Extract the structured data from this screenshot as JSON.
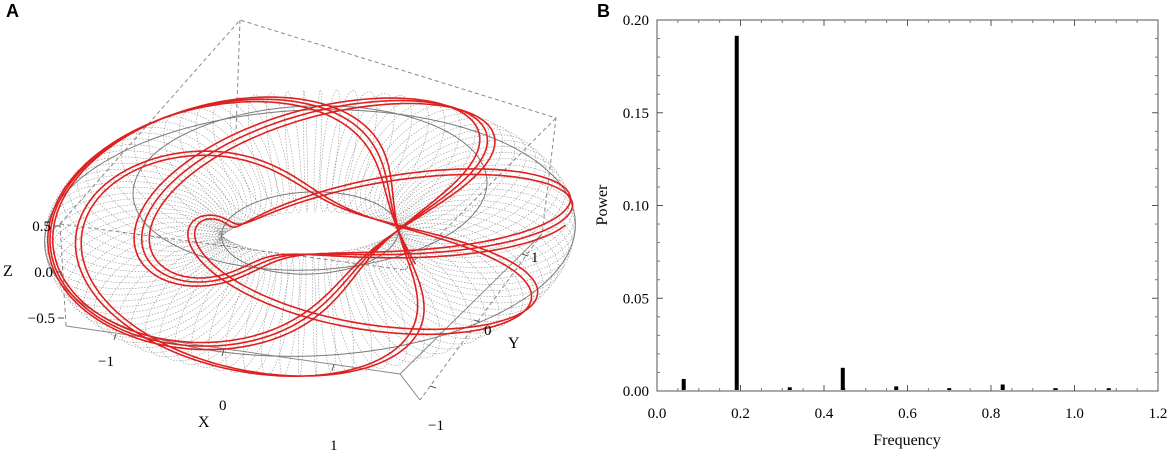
{
  "panels": {
    "a_label": "A",
    "b_label": "B"
  },
  "torus_plot": {
    "axis_labels": {
      "x": "X",
      "y": "Y",
      "z": "Z"
    },
    "x_ticks": [
      "−1",
      "0",
      "1"
    ],
    "y_ticks": [
      "−1",
      "0",
      "1"
    ],
    "z_ticks": [
      "0.5",
      "0.0",
      "−0.5"
    ],
    "colors": {
      "mesh": "#7a7a7a",
      "trajectory": "#e02020",
      "box": "#8a8a8a"
    }
  },
  "chart_data": {
    "type": "bar",
    "xlabel": "Frequency",
    "ylabel": "Power",
    "xlim": [
      0.0,
      1.2
    ],
    "ylim": [
      0.0,
      0.2
    ],
    "x_ticks": [
      "0.0",
      "0.2",
      "0.4",
      "0.6",
      "0.8",
      "1.0",
      "1.2"
    ],
    "y_ticks": [
      "0.00",
      "0.05",
      "0.10",
      "0.15",
      "0.20"
    ],
    "grid": false,
    "series": [
      {
        "x": [
          0.064,
          0.191,
          0.318,
          0.445,
          0.573,
          0.7,
          0.828,
          0.955,
          1.082
        ],
        "values": [
          0.0065,
          0.1915,
          0.002,
          0.0125,
          0.0025,
          0.0015,
          0.0035,
          0.0015,
          0.0015
        ]
      }
    ],
    "bar_color": "#000000"
  }
}
